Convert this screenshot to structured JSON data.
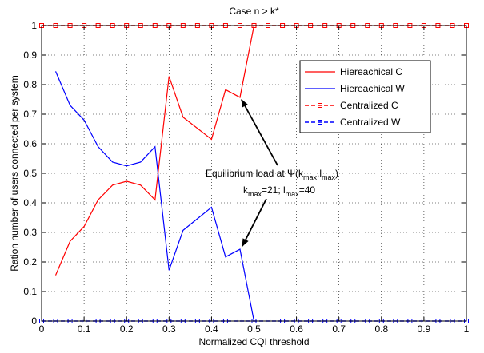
{
  "chart_data": {
    "type": "line",
    "title": "Case n > k*",
    "xlabel": "Normalized CQI threshold",
    "ylabel": "Ration number of users connected per system",
    "xlim": [
      0,
      1
    ],
    "ylim": [
      0,
      1
    ],
    "xticks": [
      0,
      0.1,
      0.2,
      0.3,
      0.4,
      0.5,
      0.6,
      0.7,
      0.8,
      0.9,
      1
    ],
    "xtick_labels": [
      "0",
      "0.1",
      "0.2",
      "0.3",
      "0.4",
      "0.5",
      "0.6",
      "0.7",
      "0.8",
      "0.9",
      "1"
    ],
    "yticks": [
      0,
      0.1,
      0.2,
      0.3,
      0.4,
      0.5,
      0.6,
      0.7,
      0.8,
      0.9,
      1
    ],
    "ytick_labels": [
      "0",
      "0.1",
      "0.2",
      "0.3",
      "0.4",
      "0.5",
      "0.6",
      "0.7",
      "0.8",
      "0.9",
      "1"
    ],
    "grid": true,
    "legend_position": "top-right",
    "series": [
      {
        "name": "Hiereachical C",
        "color": "#ff0000",
        "style": "solid",
        "marker": "none",
        "x": [
          0.033,
          0.067,
          0.1,
          0.133,
          0.167,
          0.2,
          0.233,
          0.267,
          0.3,
          0.333,
          0.4,
          0.433,
          0.467,
          0.5
        ],
        "y": [
          0.155,
          0.27,
          0.32,
          0.41,
          0.46,
          0.473,
          0.46,
          0.41,
          0.828,
          0.69,
          0.615,
          0.783,
          0.757,
          1.0
        ]
      },
      {
        "name": "Hiereachical W",
        "color": "#0000ff",
        "style": "solid",
        "marker": "none",
        "x": [
          0.033,
          0.067,
          0.1,
          0.133,
          0.167,
          0.2,
          0.233,
          0.267,
          0.3,
          0.333,
          0.4,
          0.433,
          0.467,
          0.5
        ],
        "y": [
          0.845,
          0.73,
          0.68,
          0.59,
          0.538,
          0.525,
          0.538,
          0.59,
          0.172,
          0.307,
          0.385,
          0.217,
          0.243,
          0.0
        ]
      },
      {
        "name": "Centralized C",
        "color": "#ff0000",
        "style": "dashed",
        "marker": "square",
        "x": [
          0,
          0.033,
          0.067,
          0.1,
          0.133,
          0.167,
          0.2,
          0.233,
          0.267,
          0.3,
          0.333,
          0.367,
          0.4,
          0.433,
          0.467,
          0.5,
          0.533,
          0.567,
          0.6,
          0.633,
          0.667,
          0.7,
          0.733,
          0.767,
          0.8,
          0.833,
          0.867,
          0.9,
          0.933,
          0.967,
          1.0
        ],
        "y": [
          1,
          1,
          1,
          1,
          1,
          1,
          1,
          1,
          1,
          1,
          1,
          1,
          1,
          1,
          1,
          1,
          1,
          1,
          1,
          1,
          1,
          1,
          1,
          1,
          1,
          1,
          1,
          1,
          1,
          1,
          1
        ]
      },
      {
        "name": "Centralized W",
        "color": "#0000ff",
        "style": "dashed",
        "marker": "square",
        "x": [
          0,
          0.033,
          0.067,
          0.1,
          0.133,
          0.167,
          0.2,
          0.233,
          0.267,
          0.3,
          0.333,
          0.367,
          0.4,
          0.433,
          0.467,
          0.5,
          0.533,
          0.567,
          0.6,
          0.633,
          0.667,
          0.7,
          0.733,
          0.767,
          0.8,
          0.833,
          0.867,
          0.9,
          0.933,
          0.967,
          1.0
        ],
        "y": [
          0,
          0,
          0,
          0,
          0,
          0,
          0,
          0,
          0,
          0,
          0,
          0,
          0,
          0,
          0,
          0,
          0,
          0,
          0,
          0,
          0,
          0,
          0,
          0,
          0,
          0,
          0,
          0,
          0,
          0,
          0
        ]
      }
    ],
    "annotation": {
      "line1_prefix": "Equilibrium load at Ψ(k",
      "line1_sub1": "max",
      "line1_sep": ",l",
      "line1_sub2": "max",
      "line1_suffix": ")",
      "line2_k": "k",
      "line2_sub1": "max",
      "line2_mid": "=21; l",
      "line2_sub2": "max",
      "line2_end": "=40",
      "arrow_targets": [
        {
          "x": 0.465,
          "y": 0.76
        },
        {
          "x": 0.467,
          "y": 0.243
        }
      ]
    }
  }
}
